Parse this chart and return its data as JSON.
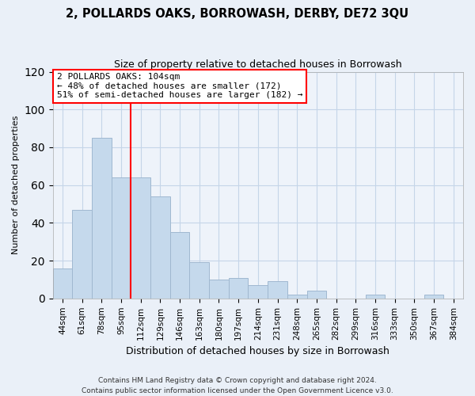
{
  "title": "2, POLLARDS OAKS, BORROWASH, DERBY, DE72 3QU",
  "subtitle": "Size of property relative to detached houses in Borrowash",
  "xlabel": "Distribution of detached houses by size in Borrowash",
  "ylabel": "Number of detached properties",
  "categories": [
    "44sqm",
    "61sqm",
    "78sqm",
    "95sqm",
    "112sqm",
    "129sqm",
    "146sqm",
    "163sqm",
    "180sqm",
    "197sqm",
    "214sqm",
    "231sqm",
    "248sqm",
    "265sqm",
    "282sqm",
    "299sqm",
    "316sqm",
    "333sqm",
    "350sqm",
    "367sqm",
    "384sqm"
  ],
  "values": [
    16,
    47,
    85,
    64,
    64,
    54,
    35,
    19,
    10,
    11,
    7,
    9,
    2,
    4,
    0,
    0,
    2,
    0,
    0,
    2,
    0
  ],
  "bar_color": "#c5d9ec",
  "bar_edge_color": "#a0b8d0",
  "ref_line_label": "2 POLLARDS OAKS: 104sqm",
  "annotation_smaller": "← 48% of detached houses are smaller (172)",
  "annotation_larger": "51% of semi-detached houses are larger (182) →",
  "ylim": [
    0,
    120
  ],
  "yticks": [
    0,
    20,
    40,
    60,
    80,
    100,
    120
  ],
  "bg_color": "#eaf0f8",
  "plot_bg_color": "#eef3fa",
  "grid_color": "#c5d5e8",
  "footnote1": "Contains HM Land Registry data © Crown copyright and database right 2024.",
  "footnote2": "Contains public sector information licensed under the Open Government Licence v3.0."
}
